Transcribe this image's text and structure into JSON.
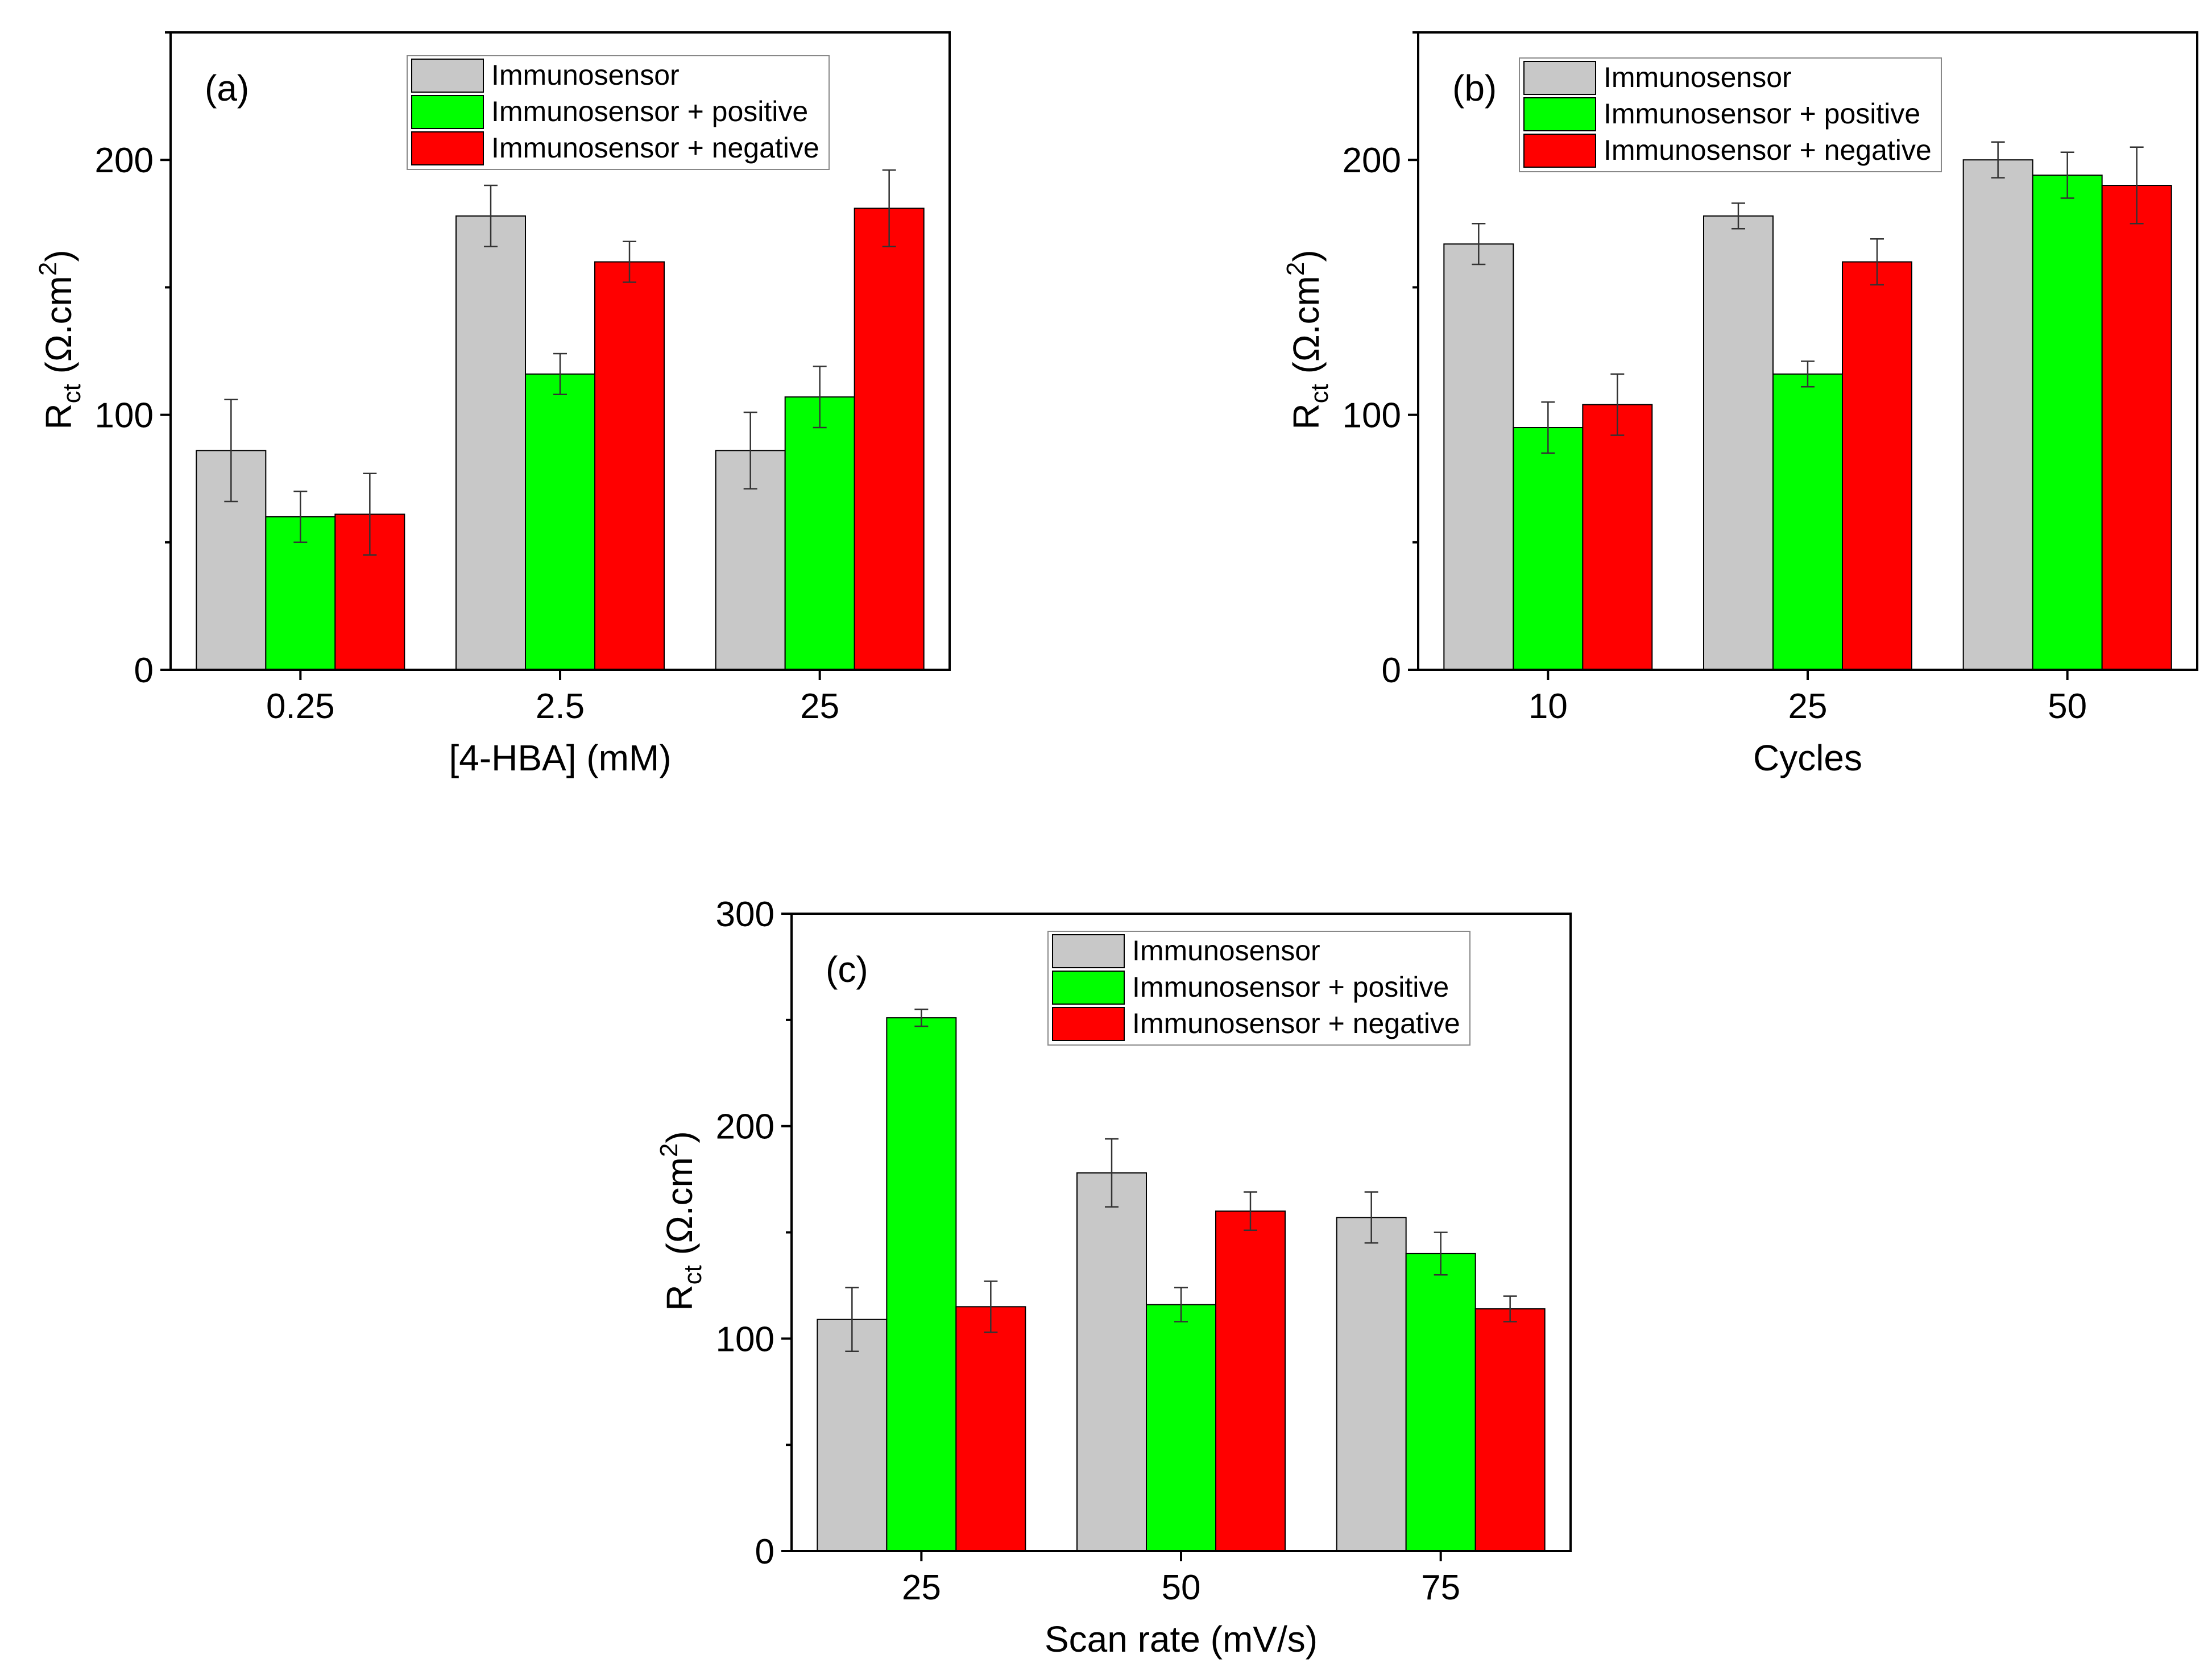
{
  "colors": {
    "immunosensor": "#c8c8c8",
    "positive": "#00ff00",
    "negative": "#ff0000",
    "axis": "#000000",
    "error_bar": "#333333"
  },
  "legend_labels": [
    "Immunosensor",
    "Immunosensor + positive",
    "Immunosensor + negative"
  ],
  "y_label": {
    "main": "R",
    "sub": "ct",
    "unit_prefix": "  (Ω.cm",
    "sup": "2",
    "unit_suffix": ")"
  },
  "chart_data": [
    {
      "id": "a",
      "panel_label": "(a)",
      "type": "bar",
      "categories": [
        "0.25",
        "2.5",
        "25"
      ],
      "xlabel": "[4-HBA]   (mM)",
      "ylim": [
        0,
        250
      ],
      "yticks": [
        0,
        100,
        200
      ],
      "legend_position": "top-right",
      "series": [
        {
          "name": "Immunosensor",
          "values": [
            86,
            178,
            86
          ],
          "errors": [
            20,
            12,
            15
          ]
        },
        {
          "name": "Immunosensor + positive",
          "values": [
            60,
            116,
            107
          ],
          "errors": [
            10,
            8,
            12
          ]
        },
        {
          "name": "Immunosensor + negative",
          "values": [
            61,
            160,
            181
          ],
          "errors": [
            16,
            8,
            15
          ]
        }
      ]
    },
    {
      "id": "b",
      "panel_label": "(b)",
      "type": "bar",
      "categories": [
        "10",
        "25",
        "50"
      ],
      "xlabel": "Cycles",
      "ylim": [
        0,
        250
      ],
      "yticks": [
        0,
        100,
        200
      ],
      "legend_position": "top-right",
      "series": [
        {
          "name": "Immunosensor",
          "values": [
            167,
            178,
            200
          ],
          "errors": [
            8,
            5,
            7
          ]
        },
        {
          "name": "Immunosensor + positive",
          "values": [
            95,
            116,
            194
          ],
          "errors": [
            10,
            5,
            9
          ]
        },
        {
          "name": "Immunosensor + negative",
          "values": [
            104,
            160,
            190
          ],
          "errors": [
            12,
            9,
            15
          ]
        }
      ]
    },
    {
      "id": "c",
      "panel_label": "(c)",
      "type": "bar",
      "categories": [
        "25",
        "50",
        "75"
      ],
      "xlabel": "Scan rate  (mV/s)",
      "ylim": [
        0,
        300
      ],
      "yticks": [
        0,
        100,
        200,
        300
      ],
      "legend_position": "top-right",
      "series": [
        {
          "name": "Immunosensor",
          "values": [
            109,
            178,
            157
          ],
          "errors": [
            15,
            16,
            12
          ]
        },
        {
          "name": "Immunosensor + positive",
          "values": [
            251,
            116,
            140
          ],
          "errors": [
            4,
            8,
            10
          ]
        },
        {
          "name": "Immunosensor + negative",
          "values": [
            115,
            160,
            114
          ],
          "errors": [
            12,
            9,
            6
          ]
        }
      ]
    }
  ]
}
